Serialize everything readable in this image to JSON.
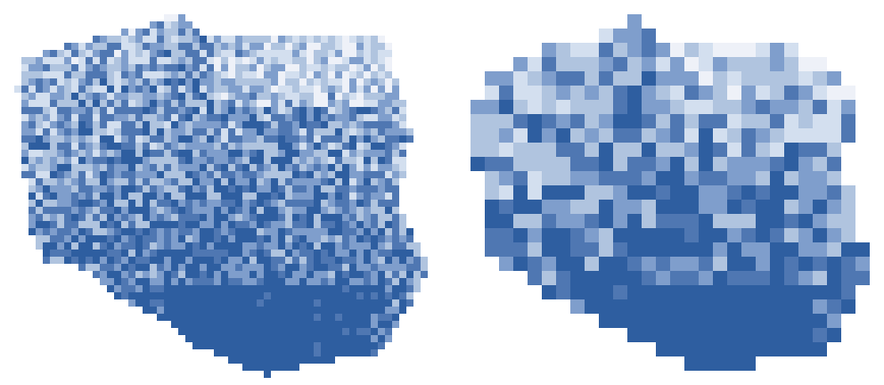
{
  "maps": [
    {
      "id": "fine-grid",
      "grid_resolution": "fine",
      "shape": "Poland outline",
      "palette": [
        "#eef2f8",
        "#d3deee",
        "#b0c4e0",
        "#7f9ecb",
        "#4f78b3",
        "#2e5e9f"
      ]
    },
    {
      "id": "coarse-grid",
      "grid_resolution": "coarse",
      "shape": "Poland outline",
      "palette": [
        "#eef2f8",
        "#d3deee",
        "#b0c4e0",
        "#7f9ecb",
        "#4f78b3",
        "#2e5e9f"
      ]
    }
  ],
  "colors": {
    "background": "#ffffff",
    "darkest": "#2e5e9f",
    "lightest": "#eef2f8"
  }
}
